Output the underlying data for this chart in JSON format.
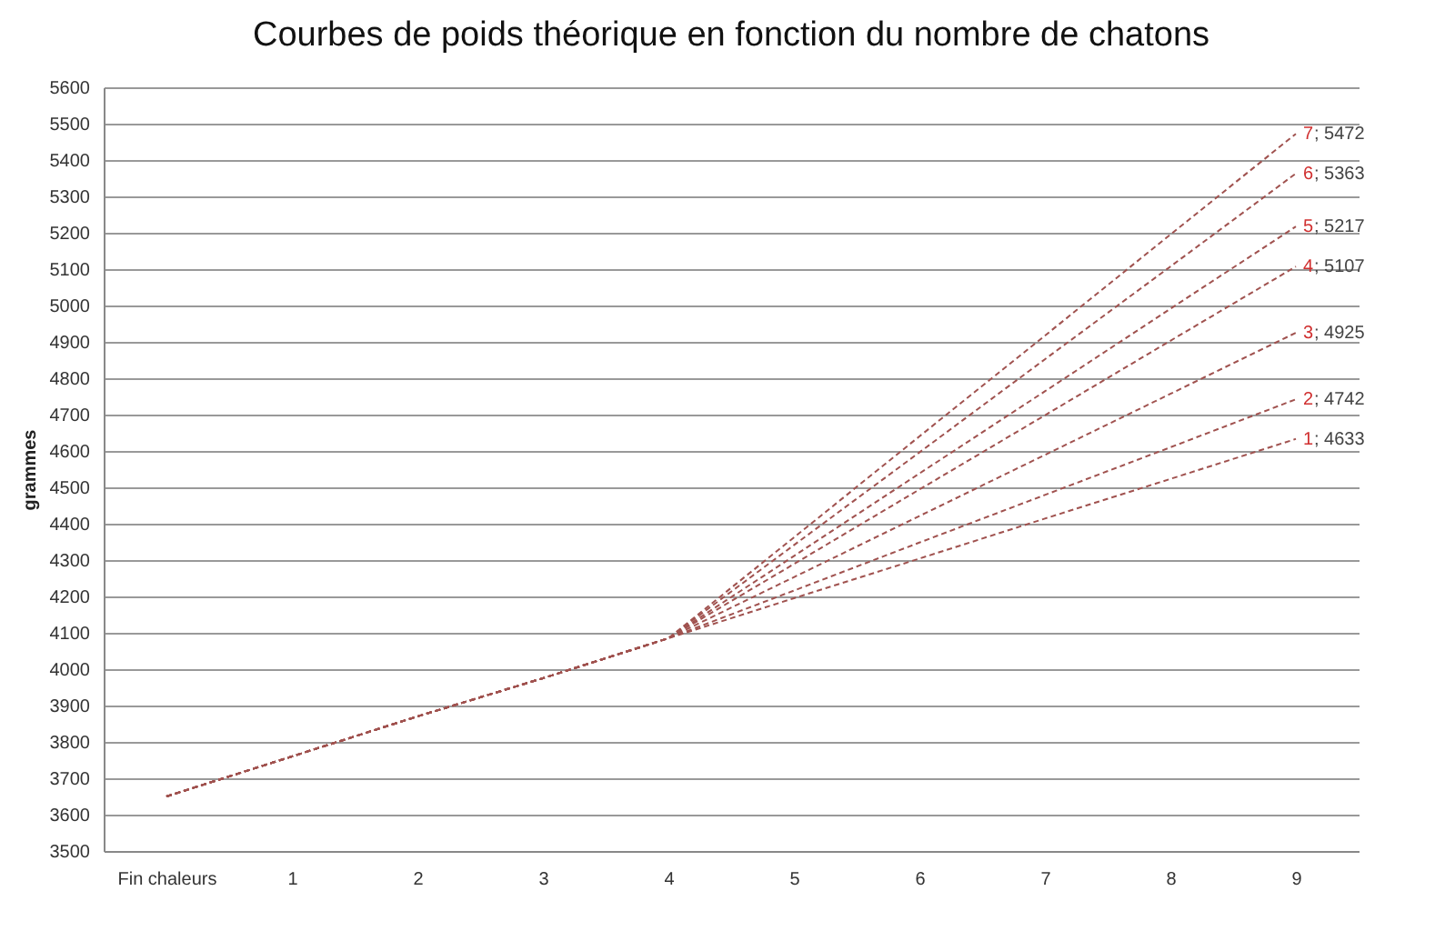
{
  "chart_data": {
    "type": "line",
    "title": "Courbes de poids théorique en fonction du nombre de chatons",
    "ylabel": "grammes",
    "categories": [
      "Fin chaleurs",
      "1",
      "2",
      "3",
      "4",
      "5",
      "6",
      "7",
      "8",
      "9"
    ],
    "series": [
      {
        "name": "1",
        "color": "#a0524f",
        "values": [
          3650,
          3760,
          3870,
          3975,
          4085,
          4195,
          4304,
          4414,
          4523,
          4633
        ],
        "value_labels": [
          null,
          null,
          null,
          null,
          null,
          null,
          null,
          null,
          null,
          "; 4633"
        ]
      },
      {
        "name": "2",
        "color": "#a0524f",
        "values": [
          3650,
          3760,
          3870,
          3975,
          4085,
          4216,
          4348,
          4479,
          4610,
          4742
        ],
        "value_labels": [
          null,
          null,
          null,
          null,
          null,
          null,
          null,
          null,
          null,
          "; 4742"
        ]
      },
      {
        "name": "3",
        "color": "#a0524f",
        "values": [
          3650,
          3760,
          3870,
          3975,
          4085,
          4253,
          4421,
          4589,
          4757,
          4925
        ],
        "value_labels": [
          null,
          null,
          null,
          null,
          null,
          null,
          null,
          null,
          null,
          "; 4925"
        ]
      },
      {
        "name": "4",
        "color": "#a0524f",
        "values": [
          3650,
          3760,
          3870,
          3975,
          4085,
          4289,
          4494,
          4698,
          4903,
          5107
        ],
        "value_labels": [
          null,
          null,
          null,
          null,
          null,
          null,
          null,
          null,
          null,
          "; 5107"
        ]
      },
      {
        "name": "5",
        "color": "#a0524f",
        "values": [
          3650,
          3760,
          3870,
          3975,
          4085,
          4311,
          4538,
          4764,
          4991,
          5217
        ],
        "value_labels": [
          null,
          null,
          null,
          null,
          null,
          null,
          null,
          null,
          null,
          "; 5217"
        ]
      },
      {
        "name": "6",
        "color": "#a0524f",
        "values": [
          3650,
          3760,
          3870,
          3975,
          4085,
          4341,
          4596,
          4852,
          5107,
          5363
        ],
        "value_labels": [
          null,
          null,
          null,
          null,
          null,
          null,
          null,
          null,
          null,
          "; 5363"
        ]
      },
      {
        "name": "7",
        "color": "#a0524f",
        "values": [
          3650,
          3760,
          3870,
          3975,
          4085,
          4362,
          4640,
          4917,
          5195,
          5472
        ],
        "value_labels": [
          null,
          null,
          null,
          null,
          null,
          null,
          null,
          null,
          null,
          "; 5472"
        ]
      }
    ],
    "ylim": [
      3500,
      5600
    ],
    "yticks": [
      3500,
      3600,
      3700,
      3800,
      3900,
      4000,
      4100,
      4200,
      4300,
      4400,
      4500,
      4600,
      4700,
      4800,
      4900,
      5000,
      5100,
      5200,
      5300,
      5400,
      5500,
      5600
    ],
    "grid": "y",
    "legend": false,
    "marker": "none",
    "line_style": "dashed"
  }
}
